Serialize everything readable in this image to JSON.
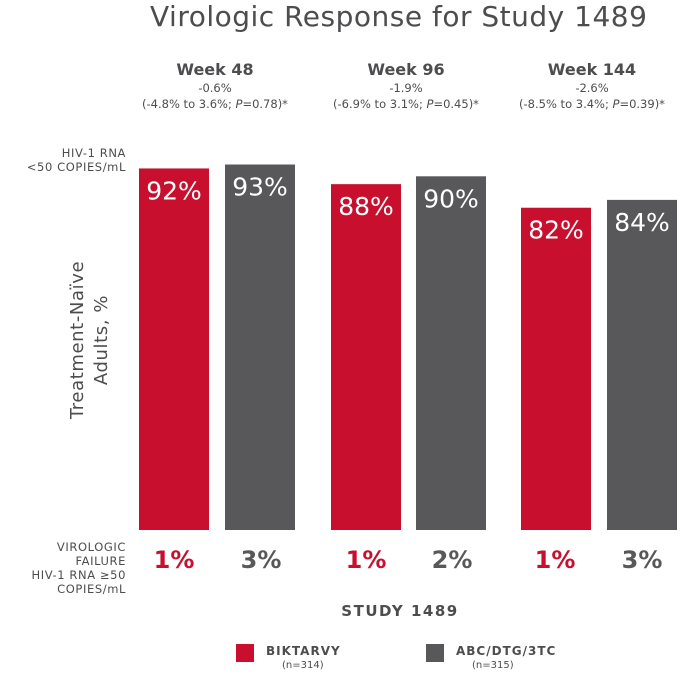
{
  "chart_data": {
    "type": "bar",
    "title": "Virologic Response for Study 1489",
    "categories": [
      "Week 48",
      "Week 96",
      "Week 144"
    ],
    "series": [
      {
        "name": "BIKTARVY",
        "n": "(n=314)",
        "color": "#c8102e",
        "values": [
          92,
          88,
          82
        ],
        "labels": [
          "92%",
          "88%",
          "82%"
        ],
        "virologic_failure": [
          "1%",
          "1%",
          "1%"
        ]
      },
      {
        "name": "ABC/DTG/3TC",
        "n": "(n=315)",
        "color": "#58585b",
        "values": [
          93,
          90,
          84
        ],
        "labels": [
          "93%",
          "90%",
          "84%"
        ],
        "virologic_failure": [
          "3%",
          "2%",
          "3%"
        ]
      }
    ],
    "differences": [
      {
        "diff": "-0.6%",
        "ci": "(-4.8% to 3.6%; P=0.78)*"
      },
      {
        "diff": "-1.9%",
        "ci": "(-6.9% to 3.1%; P=0.45)*"
      },
      {
        "diff": "-2.6%",
        "ci": "(-8.5% to 3.4%; P=0.39)*"
      }
    ],
    "ylabel_lines": [
      "Treatment-Naïve",
      "Adults, %"
    ],
    "response_label_lines": [
      "HIV-1 RNA",
      "<50 COPIES/mL"
    ],
    "failure_label_lines": [
      "VIROLOGIC",
      "FAILURE",
      "HIV-1 RNA ≥50",
      "COPIES/mL"
    ],
    "xlabel": "STUDY 1489",
    "ylim": [
      0,
      100
    ],
    "grid": false,
    "legend_position": "bottom"
  }
}
